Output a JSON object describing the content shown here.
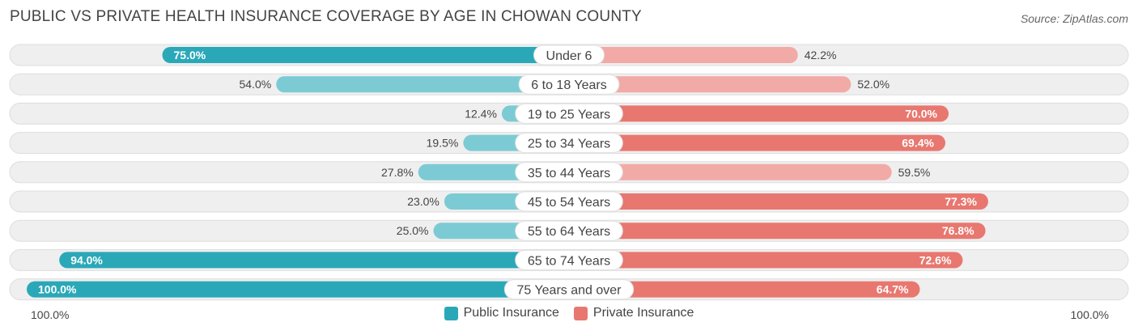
{
  "header": {
    "title": "PUBLIC VS PRIVATE HEALTH INSURANCE COVERAGE BY AGE IN CHOWAN COUNTY",
    "source": "Source: ZipAtlas.com"
  },
  "legend": {
    "public_label": "Public Insurance",
    "private_label": "Private Insurance"
  },
  "axis": {
    "left_label": "100.0%",
    "right_label": "100.0%"
  },
  "colors": {
    "public_dark": "#2aa8b8",
    "public_light": "#7ccbd4",
    "private_dark": "#e8776f",
    "private_light": "#f2aaa6",
    "track": "#efefef",
    "track_border": "#dddddd"
  },
  "chart_data": {
    "type": "bar",
    "orientation": "horizontal-diverging",
    "categories": [
      "Under 6",
      "6 to 18 Years",
      "19 to 25 Years",
      "25 to 34 Years",
      "35 to 44 Years",
      "45 to 54 Years",
      "55 to 64 Years",
      "65 to 74 Years",
      "75 Years and over"
    ],
    "series": [
      {
        "name": "Public Insurance",
        "values": [
          75.0,
          54.0,
          12.4,
          19.5,
          27.8,
          23.0,
          25.0,
          94.0,
          100.0
        ],
        "labels": [
          "75.0%",
          "54.0%",
          "12.4%",
          "19.5%",
          "27.8%",
          "23.0%",
          "25.0%",
          "94.0%",
          "100.0%"
        ]
      },
      {
        "name": "Private Insurance",
        "values": [
          42.2,
          52.0,
          70.0,
          69.4,
          59.5,
          77.3,
          76.8,
          72.6,
          64.7
        ],
        "labels": [
          "42.2%",
          "52.0%",
          "70.0%",
          "69.4%",
          "59.5%",
          "77.3%",
          "76.8%",
          "72.6%",
          "64.7%"
        ]
      }
    ],
    "xlim": [
      0,
      100
    ],
    "legend_position": "bottom-center"
  }
}
